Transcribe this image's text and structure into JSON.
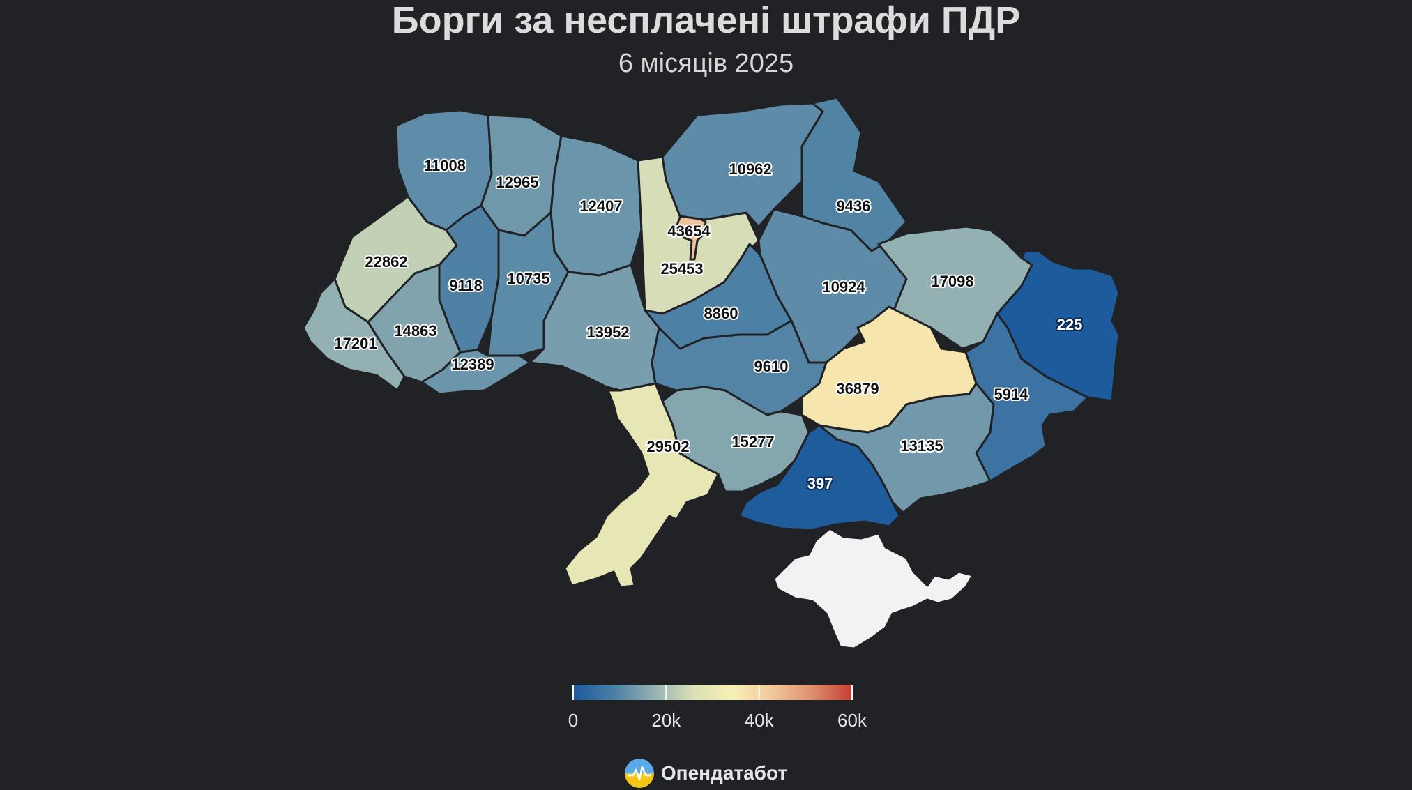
{
  "title": "Борги за несплачені штрафи ПДР",
  "subtitle": "6 місяців 2025",
  "colorscale": {
    "colors": [
      "#1c5a9c",
      "#4a7ea4",
      "#93b1b2",
      "#d9dfb7",
      "#f8f1b5",
      "#f1c89c",
      "#dd8f6f",
      "#c63d35"
    ],
    "min": 0,
    "max": 60000,
    "ticks": [
      {
        "value": 0,
        "label": "0"
      },
      {
        "value": 20000,
        "label": "20k"
      },
      {
        "value": 40000,
        "label": "40k"
      },
      {
        "value": 60000,
        "label": "60k"
      }
    ]
  },
  "regions": [
    {
      "id": "volyn",
      "value": 11008,
      "label": "11008"
    },
    {
      "id": "rivne",
      "value": 12965,
      "label": "12965"
    },
    {
      "id": "zhytomyr",
      "value": 12407,
      "label": "12407"
    },
    {
      "id": "kyiv-city",
      "value": 43654,
      "label": "43654"
    },
    {
      "id": "kyiv-oblast",
      "value": 25453,
      "label": "25453"
    },
    {
      "id": "chernihiv",
      "value": 10962,
      "label": "10962"
    },
    {
      "id": "sumy",
      "value": 9436,
      "label": "9436"
    },
    {
      "id": "lviv",
      "value": 22862,
      "label": "22862"
    },
    {
      "id": "ternopil",
      "value": 9118,
      "label": "9118"
    },
    {
      "id": "khmelnytskyi",
      "value": 10735,
      "label": "10735"
    },
    {
      "id": "zakarpattia",
      "value": 17201,
      "label": "17201"
    },
    {
      "id": "ivano-frankivsk",
      "value": 14863,
      "label": "14863"
    },
    {
      "id": "chernivtsi",
      "value": 12389,
      "label": "12389"
    },
    {
      "id": "vinnytsia",
      "value": 13952,
      "label": "13952"
    },
    {
      "id": "cherkasy",
      "value": 8860,
      "label": "8860"
    },
    {
      "id": "poltava",
      "value": 10924,
      "label": "10924"
    },
    {
      "id": "kharkiv",
      "value": 17098,
      "label": "17098"
    },
    {
      "id": "luhansk",
      "value": 225,
      "label": "225"
    },
    {
      "id": "kirovohrad",
      "value": 9610,
      "label": "9610"
    },
    {
      "id": "dnipropetrovsk",
      "value": 36879,
      "label": "36879"
    },
    {
      "id": "donetsk",
      "value": 5914,
      "label": "5914"
    },
    {
      "id": "odesa",
      "value": 29502,
      "label": "29502"
    },
    {
      "id": "mykolaiv",
      "value": 15277,
      "label": "15277"
    },
    {
      "id": "zaporizhzhia",
      "value": 13135,
      "label": "13135"
    },
    {
      "id": "kherson",
      "value": 397,
      "label": "397"
    },
    {
      "id": "crimea",
      "value": null,
      "label": ""
    }
  ],
  "no_data_color": "#f2f2f2",
  "brand": {
    "name": "Опендатабот",
    "icon": "opendatabot-logo-icon"
  }
}
